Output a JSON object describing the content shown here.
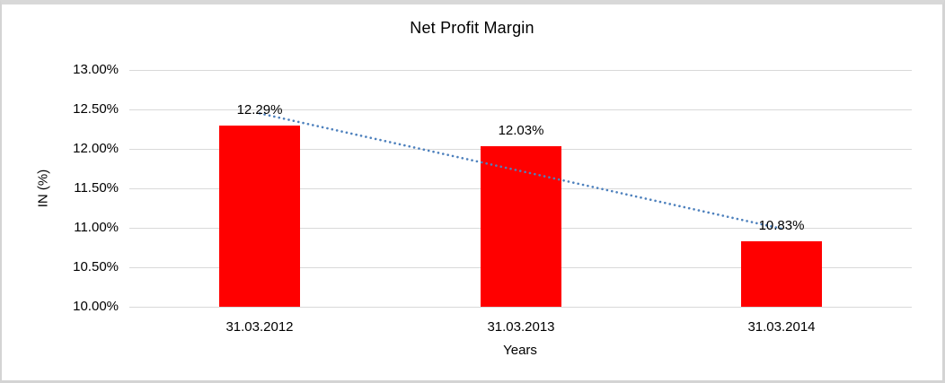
{
  "chart_data": {
    "type": "bar",
    "title": "Net Profit Margin",
    "xlabel": "Years",
    "ylabel": "IN (%)",
    "categories": [
      "31.03.2012",
      "31.03.2013",
      "31.03.2014"
    ],
    "values": [
      12.29,
      12.03,
      10.83
    ],
    "data_labels": [
      "12.29%",
      "12.03%",
      "10.83%"
    ],
    "ylim": [
      10,
      13
    ],
    "ytick_step": 0.5,
    "ytick_labels": [
      "13.00%",
      "12.50%",
      "12.00%",
      "11.50%",
      "11.00%",
      "10.50%",
      "10.00%"
    ],
    "grid": true,
    "legend": "none",
    "trendline": {
      "style": "dotted",
      "start_value": 12.45,
      "end_value": 10.99
    }
  },
  "colors": {
    "bar": "#ff0000",
    "trendline": "#4e81bd",
    "gridline": "#d9d9d9",
    "text": "#000000",
    "frame_border": "#d4d4d4"
  }
}
